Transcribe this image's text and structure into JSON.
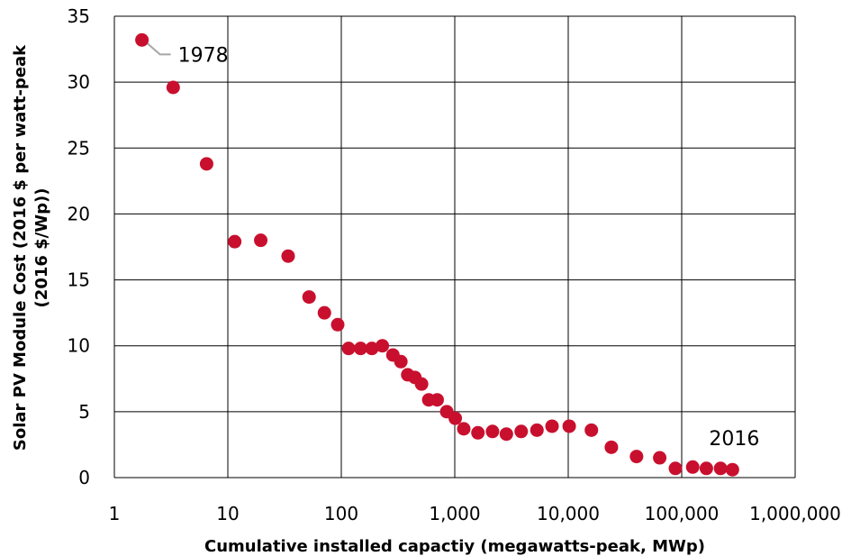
{
  "chart_data": {
    "type": "scatter",
    "title": "",
    "xlabel": "Cumulative installed capactiy (megawatts-peak, MWp)",
    "ylabel_lines": [
      "Solar PV Module Cost (2016 $ per watt-peak",
      "(2016 $/Wp))"
    ],
    "x_scale": "log",
    "xlim": [
      1,
      1000000
    ],
    "ylim": [
      0,
      35
    ],
    "x_ticks": [
      1,
      10,
      100,
      1000,
      10000,
      100000,
      1000000
    ],
    "x_tick_labels": [
      "1",
      "10",
      "100",
      "1,000",
      "10,000",
      "100,000",
      "1,000,000"
    ],
    "y_ticks": [
      0,
      5,
      10,
      15,
      20,
      25,
      30,
      35
    ],
    "y_tick_labels": [
      "0",
      "5",
      "10",
      "15",
      "20",
      "25",
      "30",
      "35"
    ],
    "grid": true,
    "marker_color": "#c8102e",
    "leader_line_color": "#a6a6a6",
    "annotations": [
      {
        "text": "1978",
        "x": 1.75,
        "y": 33.2
      },
      {
        "text": "2016",
        "x": 280000,
        "y": 0.6
      }
    ],
    "points": [
      {
        "x": 1.75,
        "y": 33.2
      },
      {
        "x": 3.3,
        "y": 29.6
      },
      {
        "x": 6.5,
        "y": 23.8
      },
      {
        "x": 11.5,
        "y": 17.9
      },
      {
        "x": 19.5,
        "y": 18.0
      },
      {
        "x": 34,
        "y": 16.8
      },
      {
        "x": 52,
        "y": 13.7
      },
      {
        "x": 71,
        "y": 12.5
      },
      {
        "x": 93,
        "y": 11.6
      },
      {
        "x": 116,
        "y": 9.8
      },
      {
        "x": 148,
        "y": 9.8
      },
      {
        "x": 186,
        "y": 9.8
      },
      {
        "x": 230,
        "y": 10.0
      },
      {
        "x": 285,
        "y": 9.3
      },
      {
        "x": 335,
        "y": 8.8
      },
      {
        "x": 385,
        "y": 7.8
      },
      {
        "x": 445,
        "y": 7.6
      },
      {
        "x": 510,
        "y": 7.1
      },
      {
        "x": 590,
        "y": 5.9
      },
      {
        "x": 700,
        "y": 5.9
      },
      {
        "x": 850,
        "y": 5.0
      },
      {
        "x": 1010,
        "y": 4.5
      },
      {
        "x": 1200,
        "y": 3.7
      },
      {
        "x": 1600,
        "y": 3.4
      },
      {
        "x": 2150,
        "y": 3.5
      },
      {
        "x": 2850,
        "y": 3.3
      },
      {
        "x": 3850,
        "y": 3.5
      },
      {
        "x": 5300,
        "y": 3.6
      },
      {
        "x": 7200,
        "y": 3.9
      },
      {
        "x": 10200,
        "y": 3.9
      },
      {
        "x": 16000,
        "y": 3.6
      },
      {
        "x": 24000,
        "y": 2.3
      },
      {
        "x": 40000,
        "y": 1.6
      },
      {
        "x": 64000,
        "y": 1.5
      },
      {
        "x": 88000,
        "y": 0.7
      },
      {
        "x": 125000,
        "y": 0.8
      },
      {
        "x": 165000,
        "y": 0.7
      },
      {
        "x": 220000,
        "y": 0.7
      },
      {
        "x": 280000,
        "y": 0.6
      }
    ]
  }
}
